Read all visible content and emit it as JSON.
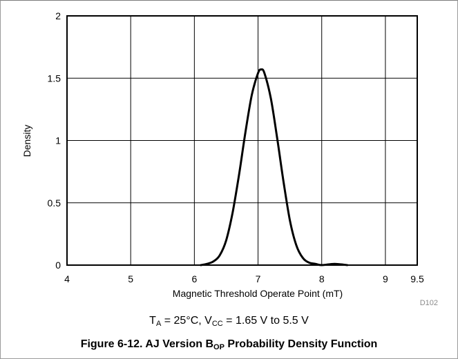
{
  "conditions": {
    "ta_symbol": "T",
    "ta_sub": "A",
    "ta_value": " = 25°C, ",
    "vcc_symbol": "V",
    "vcc_sub": "CC",
    "vcc_value": " = 1.65 V to 5.5 V"
  },
  "caption": {
    "prefix": "Figure 6-12. AJ Version B",
    "sub": "OP",
    "suffix": " Probability Density Function"
  },
  "chart_data": {
    "type": "line",
    "xlabel": "Magnetic Threshold Operate Point (mT)",
    "ylabel": "Density",
    "xlim": [
      4,
      9.5
    ],
    "ylim": [
      0,
      2
    ],
    "x_ticks": [
      4,
      5,
      6,
      7,
      8,
      9,
      9.5
    ],
    "x_tick_labels": [
      "4",
      "5",
      "6",
      "7",
      "8",
      "9",
      "9.5"
    ],
    "y_ticks": [
      0,
      0.5,
      1,
      1.5,
      2
    ],
    "y_tick_labels": [
      "0",
      "0.5",
      "1",
      "1.5",
      "2"
    ],
    "grid": true,
    "code": "D102",
    "series": [
      {
        "color": "#000000",
        "x": [
          6.1,
          6.2,
          6.3,
          6.4,
          6.5,
          6.6,
          6.7,
          6.8,
          6.9,
          7.0,
          7.05,
          7.1,
          7.2,
          7.3,
          7.4,
          7.5,
          7.6,
          7.7,
          7.8,
          7.9,
          8.0,
          8.2,
          8.4
        ],
        "y": [
          0.0,
          0.01,
          0.03,
          0.08,
          0.2,
          0.42,
          0.72,
          1.06,
          1.36,
          1.54,
          1.57,
          1.54,
          1.34,
          1.02,
          0.67,
          0.36,
          0.16,
          0.06,
          0.02,
          0.01,
          0.0,
          0.01,
          0.0
        ]
      }
    ]
  }
}
